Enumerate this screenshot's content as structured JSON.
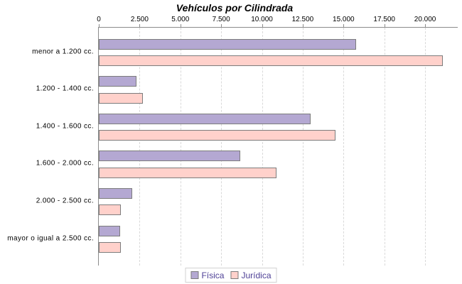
{
  "title": "Vehículos por Cilindrada",
  "chart_data": {
    "type": "bar",
    "orientation": "horizontal",
    "title": "Vehículos por Cilindrada",
    "categories": [
      "menor a 1.200 cc.",
      "1.200 - 1.400 cc.",
      "1.400 - 1.600 cc.",
      "1.600 - 2.000 cc.",
      "2.000 - 2.500 cc.",
      "mayor o igual a 2.500 cc."
    ],
    "series": [
      {
        "name": "Física",
        "color": "#b4a8d2",
        "values": [
          15700,
          2200,
          12900,
          8600,
          1950,
          1200
        ]
      },
      {
        "name": "Jurídica",
        "color": "#ffd1cb",
        "values": [
          21000,
          2600,
          14400,
          10800,
          1250,
          1250
        ]
      }
    ],
    "xlim": [
      0,
      22000
    ],
    "x_ticks": [
      0,
      2500,
      5000,
      7500,
      10000,
      12500,
      15000,
      17500,
      20000
    ],
    "x_tick_labels": [
      "0",
      "2.500",
      "5.000",
      "7.500",
      "10.000",
      "12.500",
      "15.000",
      "17.500",
      "20.000"
    ],
    "grid": true,
    "grid_style": "dashed-vertical",
    "legend_position": "bottom",
    "axis_position": "top"
  },
  "colors": {
    "axis": "#8c8c8c",
    "gridline": "#d9d9d9",
    "bar_border": "#7c7c7c",
    "legend_border": "#d2d2d2",
    "legend_text": "#4d3f96",
    "title_text": "#000000"
  }
}
